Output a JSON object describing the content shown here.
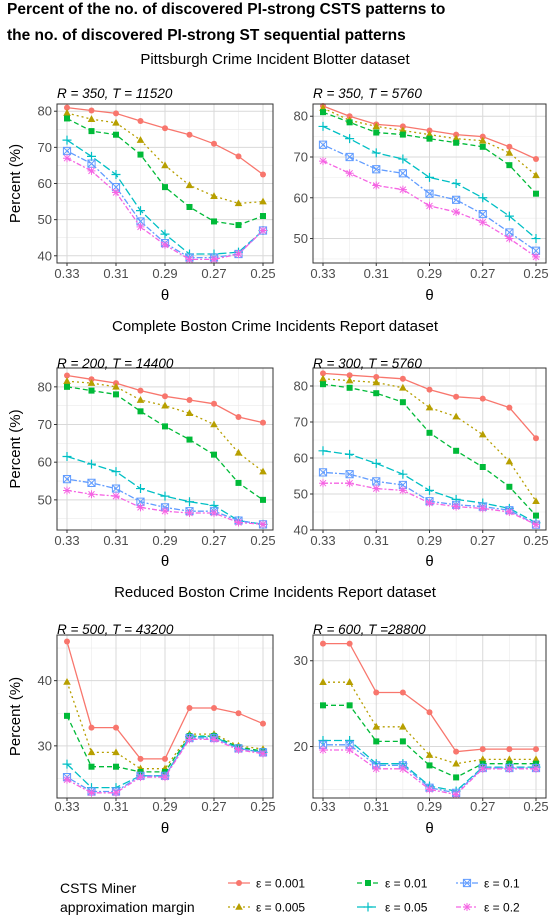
{
  "title_lines": [
    "Percent of the no. of discovered PI-strong CSTS patterns to",
    "the no. of discovered PI-strong ST sequential patterns"
  ],
  "colors": {
    "e0.001": "#F8766D",
    "e0.005": "#B79F00",
    "e0.01": "#00BA38",
    "e0.05": "#00BFC4",
    "e0.1": "#619CFF",
    "e0.2": "#F564E3"
  },
  "legend": {
    "title_lines": [
      "CSTS Miner",
      "approximation margin"
    ],
    "entries": [
      {
        "key": "e0.001",
        "label": "ε = 0.001",
        "marker": "circle",
        "dash": ""
      },
      {
        "key": "e0.01",
        "label": "ε = 0.01",
        "marker": "square",
        "dash": "5,3"
      },
      {
        "key": "e0.1",
        "label": "ε = 0.1",
        "marker": "boxcross",
        "dash": "2,2,6,2"
      },
      {
        "key": "e0.005",
        "label": "ε = 0.005",
        "marker": "triangle",
        "dash": "2,3"
      },
      {
        "key": "e0.05",
        "label": "ε = 0.05",
        "marker": "plus",
        "dash": "8,3"
      },
      {
        "key": "e0.2",
        "label": "ε = 0.2",
        "marker": "asterisk",
        "dash": "5,2,2,2"
      }
    ]
  },
  "x_label": "θ",
  "y_label": "Percent (%)",
  "x_ticks": [
    0.33,
    0.31,
    0.29,
    0.27,
    0.25
  ],
  "x_tick_labels": [
    "0.33",
    "0.31",
    "0.29",
    "0.27",
    "0.25"
  ],
  "chart_data": [
    {
      "type": "line",
      "section": "Pittsburgh Crime Incident Blotter dataset",
      "subtitle": "R = 350, T = 11520",
      "x": [
        0.33,
        0.32,
        0.31,
        0.3,
        0.29,
        0.28,
        0.27,
        0.26,
        0.25
      ],
      "xlim": [
        0.25,
        0.33
      ],
      "ylim": [
        38,
        82
      ],
      "yticks": [
        40,
        50,
        60,
        70,
        80
      ],
      "series": [
        {
          "name": "ε = 0.001",
          "key": "e0.001",
          "values": [
            81.0,
            80.2,
            79.4,
            77.3,
            75.3,
            73.5,
            71.0,
            67.5,
            62.5
          ]
        },
        {
          "name": "ε = 0.005",
          "key": "e0.005",
          "values": [
            79.5,
            77.8,
            76.8,
            72.0,
            65.0,
            59.5,
            56.5,
            54.5,
            55.0
          ]
        },
        {
          "name": "ε = 0.01",
          "key": "e0.01",
          "values": [
            78.0,
            74.5,
            73.5,
            68.0,
            59.0,
            53.5,
            49.5,
            48.5,
            51.0
          ]
        },
        {
          "name": "ε = 0.05",
          "key": "e0.05",
          "values": [
            72.0,
            67.5,
            62.5,
            52.5,
            46.0,
            40.5,
            40.5,
            41.0,
            47.0
          ]
        },
        {
          "name": "ε = 0.1",
          "key": "e0.1",
          "values": [
            69.0,
            65.5,
            59.0,
            49.5,
            43.5,
            39.5,
            39.5,
            40.5,
            47.0
          ]
        },
        {
          "name": "ε = 0.2",
          "key": "e0.2",
          "values": [
            67.0,
            63.5,
            57.5,
            48.0,
            43.0,
            39.0,
            39.0,
            40.5,
            47.0
          ]
        }
      ]
    },
    {
      "type": "line",
      "section": "",
      "subtitle": "R = 350, T = 5760",
      "x": [
        0.33,
        0.32,
        0.31,
        0.3,
        0.29,
        0.28,
        0.27,
        0.26,
        0.25
      ],
      "xlim": [
        0.25,
        0.33
      ],
      "ylim": [
        44,
        83
      ],
      "yticks": [
        50,
        60,
        70,
        80
      ],
      "series": [
        {
          "name": "ε = 0.001",
          "key": "e0.001",
          "values": [
            82.5,
            80.0,
            78.0,
            77.5,
            76.5,
            75.5,
            75.0,
            72.5,
            69.5
          ]
        },
        {
          "name": "ε = 0.005",
          "key": "e0.005",
          "values": [
            82.0,
            79.0,
            77.5,
            76.5,
            75.5,
            74.5,
            74.0,
            71.0,
            65.5
          ]
        },
        {
          "name": "ε = 0.01",
          "key": "e0.01",
          "values": [
            81.0,
            78.5,
            76.0,
            75.5,
            74.5,
            73.5,
            72.5,
            68.0,
            61.0
          ]
        },
        {
          "name": "ε = 0.05",
          "key": "e0.05",
          "values": [
            77.5,
            74.5,
            71.0,
            69.5,
            65.0,
            63.5,
            60.0,
            55.5,
            50.0
          ]
        },
        {
          "name": "ε = 0.1",
          "key": "e0.1",
          "values": [
            73.0,
            70.0,
            67.0,
            66.0,
            61.0,
            59.5,
            56.0,
            51.5,
            47.0
          ]
        },
        {
          "name": "ε = 0.2",
          "key": "e0.2",
          "values": [
            69.0,
            66.0,
            63.0,
            62.0,
            58.0,
            56.5,
            54.0,
            50.0,
            45.5
          ]
        }
      ]
    },
    {
      "type": "line",
      "section": "Complete Boston Crime Incidents Report dataset",
      "subtitle": "R = 200, T = 14400",
      "x": [
        0.33,
        0.32,
        0.31,
        0.3,
        0.29,
        0.28,
        0.27,
        0.26,
        0.25
      ],
      "xlim": [
        0.25,
        0.33
      ],
      "ylim": [
        42,
        85
      ],
      "yticks": [
        50,
        60,
        70,
        80
      ],
      "series": [
        {
          "name": "ε = 0.001",
          "key": "e0.001",
          "values": [
            83.0,
            82.0,
            81.0,
            79.0,
            77.5,
            76.5,
            75.5,
            72.0,
            70.5
          ]
        },
        {
          "name": "ε = 0.005",
          "key": "e0.005",
          "values": [
            81.5,
            81.0,
            80.0,
            76.5,
            75.0,
            73.0,
            70.0,
            62.5,
            57.5
          ]
        },
        {
          "name": "ε = 0.01",
          "key": "e0.01",
          "values": [
            80.0,
            79.0,
            78.0,
            73.5,
            69.5,
            66.0,
            62.0,
            54.5,
            50.0
          ]
        },
        {
          "name": "ε = 0.05",
          "key": "e0.05",
          "values": [
            61.5,
            59.5,
            57.5,
            53.0,
            51.0,
            49.5,
            48.5,
            44.5,
            43.5
          ]
        },
        {
          "name": "ε = 0.1",
          "key": "e0.1",
          "values": [
            55.5,
            54.5,
            53.0,
            49.5,
            48.0,
            47.0,
            47.0,
            44.5,
            43.5
          ]
        },
        {
          "name": "ε = 0.2",
          "key": "e0.2",
          "values": [
            52.5,
            51.5,
            51.0,
            48.0,
            47.0,
            46.5,
            46.5,
            44.0,
            43.5
          ]
        }
      ]
    },
    {
      "type": "line",
      "section": "",
      "subtitle": "R = 300, T = 5760",
      "x": [
        0.33,
        0.32,
        0.31,
        0.3,
        0.29,
        0.28,
        0.27,
        0.26,
        0.25
      ],
      "xlim": [
        0.25,
        0.33
      ],
      "ylim": [
        40,
        85
      ],
      "yticks": [
        40,
        50,
        60,
        70,
        80
      ],
      "series": [
        {
          "name": "ε = 0.001",
          "key": "e0.001",
          "values": [
            83.5,
            83.0,
            82.5,
            82.0,
            79.0,
            77.0,
            76.5,
            74.0,
            65.5
          ]
        },
        {
          "name": "ε = 0.005",
          "key": "e0.005",
          "values": [
            82.0,
            81.5,
            81.0,
            79.5,
            74.0,
            71.5,
            66.5,
            59.0,
            48.0
          ]
        },
        {
          "name": "ε = 0.01",
          "key": "e0.01",
          "values": [
            80.5,
            79.5,
            78.0,
            75.5,
            67.0,
            62.0,
            57.5,
            52.0,
            44.0
          ]
        },
        {
          "name": "ε = 0.05",
          "key": "e0.05",
          "values": [
            62.0,
            61.0,
            58.5,
            55.5,
            51.0,
            48.5,
            47.5,
            46.0,
            42.0
          ]
        },
        {
          "name": "ε = 0.1",
          "key": "e0.1",
          "values": [
            56.0,
            55.5,
            53.5,
            52.5,
            48.0,
            47.0,
            46.5,
            45.5,
            41.5
          ]
        },
        {
          "name": "ε = 0.2",
          "key": "e0.2",
          "values": [
            53.0,
            53.0,
            51.5,
            51.0,
            47.5,
            46.5,
            46.0,
            45.0,
            41.5
          ]
        }
      ]
    },
    {
      "type": "line",
      "section": "Reduced Boston Crime Incidents Report dataset",
      "subtitle": "R = 500, T = 43200",
      "x": [
        0.33,
        0.32,
        0.31,
        0.3,
        0.29,
        0.28,
        0.27,
        0.26,
        0.25
      ],
      "xlim": [
        0.25,
        0.33
      ],
      "ylim": [
        22,
        47
      ],
      "yticks": [
        30,
        40
      ],
      "series": [
        {
          "name": "ε = 0.001",
          "key": "e0.001",
          "values": [
            46.0,
            32.8,
            32.8,
            28.0,
            28.0,
            35.8,
            35.8,
            35.0,
            33.4
          ]
        },
        {
          "name": "ε = 0.005",
          "key": "e0.005",
          "values": [
            39.8,
            29.0,
            29.0,
            26.5,
            26.5,
            31.8,
            31.8,
            30.0,
            29.5
          ]
        },
        {
          "name": "ε = 0.01",
          "key": "e0.01",
          "values": [
            34.6,
            26.8,
            26.8,
            26.0,
            26.0,
            31.5,
            31.5,
            29.8,
            29.2
          ]
        },
        {
          "name": "ε = 0.05",
          "key": "e0.05",
          "values": [
            27.2,
            23.6,
            23.6,
            25.4,
            25.4,
            31.4,
            31.4,
            29.6,
            29.0
          ]
        },
        {
          "name": "ε = 0.1",
          "key": "e0.1",
          "values": [
            25.2,
            23.0,
            23.0,
            25.4,
            25.4,
            31.2,
            31.2,
            29.6,
            29.0
          ]
        },
        {
          "name": "ε = 0.2",
          "key": "e0.2",
          "values": [
            24.8,
            22.8,
            22.8,
            25.2,
            25.2,
            31.0,
            31.0,
            29.4,
            28.8
          ]
        }
      ]
    },
    {
      "type": "line",
      "section": "",
      "subtitle": "R = 600, T =28800",
      "x": [
        0.33,
        0.32,
        0.31,
        0.3,
        0.29,
        0.28,
        0.27,
        0.26,
        0.25
      ],
      "xlim": [
        0.25,
        0.33
      ],
      "ylim": [
        14,
        33
      ],
      "yticks": [
        20,
        30
      ],
      "series": [
        {
          "name": "ε = 0.001",
          "key": "e0.001",
          "values": [
            32.0,
            32.0,
            26.3,
            26.3,
            24.0,
            19.4,
            19.7,
            19.7,
            19.7
          ]
        },
        {
          "name": "ε = 0.005",
          "key": "e0.005",
          "values": [
            27.5,
            27.5,
            22.3,
            22.3,
            19.0,
            18.0,
            18.5,
            18.5,
            18.5
          ]
        },
        {
          "name": "ε = 0.01",
          "key": "e0.01",
          "values": [
            24.8,
            24.8,
            20.6,
            20.6,
            17.8,
            16.4,
            18.0,
            18.0,
            18.0
          ]
        },
        {
          "name": "ε = 0.05",
          "key": "e0.05",
          "values": [
            20.7,
            20.7,
            18.0,
            18.0,
            15.4,
            14.8,
            17.6,
            17.6,
            17.6
          ]
        },
        {
          "name": "ε = 0.1",
          "key": "e0.1",
          "values": [
            20.2,
            20.2,
            17.8,
            17.8,
            15.2,
            14.6,
            17.5,
            17.5,
            17.5
          ]
        },
        {
          "name": "ε = 0.2",
          "key": "e0.2",
          "values": [
            19.6,
            19.6,
            17.4,
            17.4,
            15.0,
            14.4,
            17.4,
            17.4,
            17.4
          ]
        }
      ]
    }
  ]
}
